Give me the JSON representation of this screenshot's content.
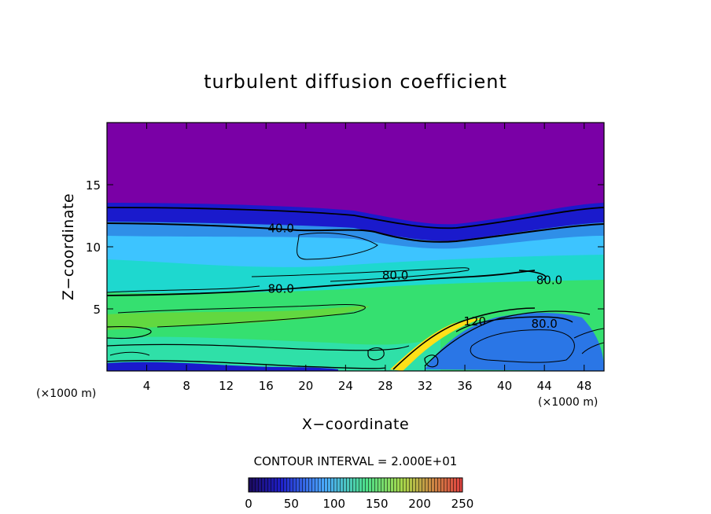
{
  "chart_data": {
    "type": "heatmap",
    "title": "turbulent diffusion coefficient",
    "xlabel": "X−coordinate",
    "ylabel": "Z−coordinate",
    "x_unit": "(×1000 m)",
    "y_unit": "(×1000 m)",
    "xlim": [
      0,
      50
    ],
    "ylim": [
      0,
      20
    ],
    "x_ticks": [
      4,
      8,
      12,
      16,
      20,
      24,
      28,
      32,
      36,
      40,
      44,
      48
    ],
    "y_ticks": [
      5,
      10,
      15
    ],
    "contour_interval_text": "CONTOUR INTERVAL = 2.000E+01",
    "contour_interval": 20,
    "contour_labels": [
      {
        "text": "40.0",
        "x": 17.5,
        "y": 11.5
      },
      {
        "text": "80.0",
        "x": 29,
        "y": 7.7
      },
      {
        "text": "80.0",
        "x": 17.5,
        "y": 6.6
      },
      {
        "text": "80.0",
        "x": 44.5,
        "y": 7.3
      },
      {
        "text": "120",
        "x": 37,
        "y": 4.0
      },
      {
        "text": "80.0",
        "x": 44,
        "y": 3.8
      }
    ],
    "colorbar": {
      "min": 0,
      "max": 250,
      "ticks": [
        "0",
        "50",
        "100",
        "150",
        "200",
        "250"
      ],
      "colors": [
        "#1b0a5c",
        "#1e1ec8",
        "#4aa6ff",
        "#4de08a",
        "#a8d84a",
        "#cc8844",
        "#e04040"
      ]
    },
    "colors": {
      "top_region": "#7a00a6",
      "inversion_band": "#1a1acc",
      "upper_layer": "#3db8ff",
      "mid_layer": "#1ed8cf",
      "lower_layer": "#35e070",
      "hill": "#ffe018"
    }
  }
}
